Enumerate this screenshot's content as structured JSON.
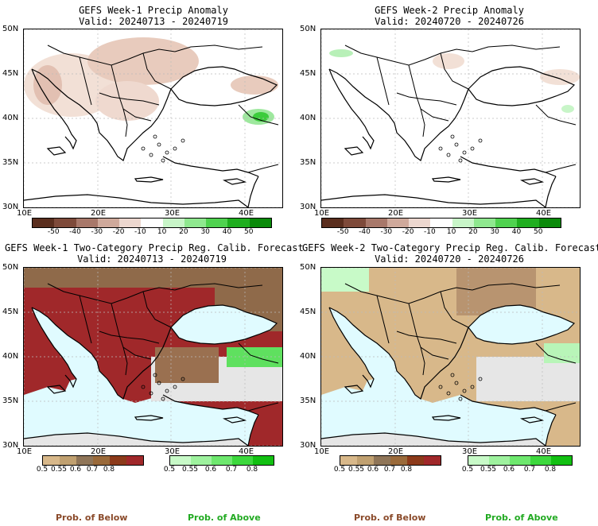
{
  "panels": [
    {
      "title": "GEFS Week-1 Precip Anomaly",
      "valid": "Valid: 20240713 - 20240719"
    },
    {
      "title": "GEFS Week-2 Precip Anomaly",
      "valid": "Valid: 20240720 - 20240726"
    },
    {
      "title": "GEFS Week-1 Two-Category Precip Reg. Calib. Forecast",
      "valid": "Valid: 20240713 - 20240719"
    },
    {
      "title": "GEFS Week-2 Two-Category Precip Reg. Calib. Forecast",
      "valid": "Valid: 20240720 - 20240726"
    }
  ],
  "lat_labels": [
    "50N",
    "45N",
    "40N",
    "35N",
    "30N"
  ],
  "lon_labels": [
    "10E",
    "20E",
    "30E",
    "40E"
  ],
  "anomaly_colorbar": {
    "labels": [
      "-50",
      "-40",
      "-30",
      "-20",
      "-10",
      "10",
      "20",
      "30",
      "40",
      "50"
    ],
    "colors": [
      "#5a2e1e",
      "#7e4a3a",
      "#a8786a",
      "#cfa99b",
      "#ecd7cf",
      "#ffffff",
      "#c8f5c8",
      "#8fe88f",
      "#4fd24f",
      "#1fae1f",
      "#0a8a0a"
    ]
  },
  "below_colorbar": {
    "labels": [
      "0.5",
      "0.55",
      "0.6",
      "0.7",
      "0.8"
    ],
    "colors": [
      "#d8b88a",
      "#c0a070",
      "#8f7558",
      "#9a6a3a",
      "#8c3a1a",
      "#a0282a"
    ]
  },
  "above_colorbar": {
    "labels": [
      "0.5",
      "0.55",
      "0.6",
      "0.7",
      "0.8"
    ],
    "colors": [
      "#c8fac8",
      "#9ef29e",
      "#6ee86e",
      "#3cd83c",
      "#12c012"
    ]
  },
  "prob_below": "Prob. of Below",
  "prob_above": "Prob. of Above"
}
